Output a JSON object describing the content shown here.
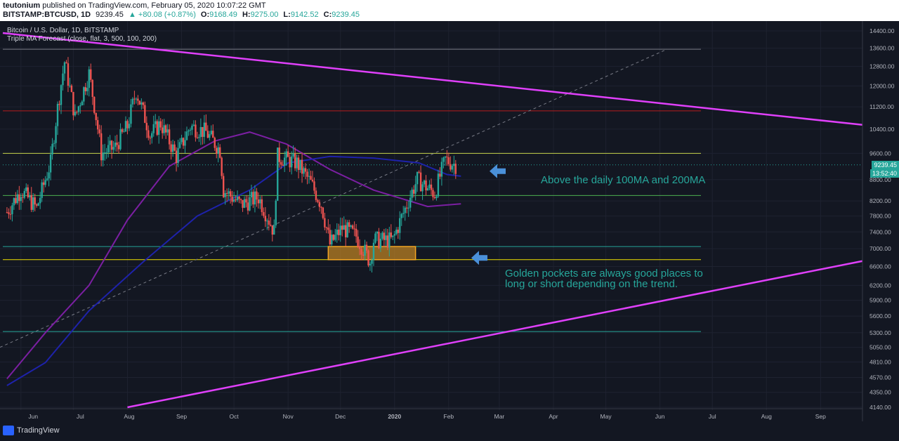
{
  "header": {
    "author": "teutonium",
    "published": "published on TradingView.com, February 05, 2020 10:07:22 GMT",
    "symbol": "BITSTAMP:BTCUSD, 1D",
    "last": "9239.45",
    "change": "▲ +80.08 (+0.87%)",
    "o_label": "O:",
    "o_val": "9168.49",
    "h_label": "H:",
    "h_val": "9275.00",
    "l_label": "L:",
    "l_val": "9142.52",
    "c_label": "C:",
    "c_val": "9239.45"
  },
  "legend": {
    "title": "Bitcoin / U.S. Dollar, 1D, BITSTAMP",
    "indicator": "Triple MA Forecast (close, flat, 3, 500, 100, 200)"
  },
  "annotations": {
    "ma_note": "Above the daily 100MA and 200MA",
    "gp_note_1": "Golden pockets are always good places to",
    "gp_note_2": "long or short depending on the trend."
  },
  "price_tags": {
    "last_price": "9239.45",
    "countdown": "13:52:40"
  },
  "footer": {
    "brand": "TradingView"
  },
  "colors": {
    "background": "#131722",
    "up": "#26a69a",
    "down": "#ef5350",
    "ma100": "#1e22aa",
    "ma200": "#7b1fa2",
    "trendline": "#e040fb",
    "golden_pocket": "#f5a623",
    "annotation": "#26a69a",
    "arrow": "#4a90d9"
  },
  "chart_data": {
    "type": "candlestick",
    "symbol": "BITSTAMP:BTCUSD",
    "interval": "1D",
    "x_ticks": [
      "Jun",
      "Jul",
      "Aug",
      "Sep",
      "Oct",
      "Nov",
      "Dec",
      "2020",
      "Feb",
      "Mar",
      "Apr",
      "May",
      "Jun",
      "Jul",
      "Aug",
      "Sep"
    ],
    "y_ticks": [
      "14400.00",
      "13600.00",
      "12800.00",
      "12000.00",
      "11200.00",
      "10400.00",
      "9600.00",
      "8800.00",
      "8200.00",
      "7800.00",
      "7400.00",
      "7000.00",
      "6600.00",
      "6200.00",
      "5900.00",
      "5600.00",
      "5300.00",
      "5050.00",
      "4810.00",
      "4570.00",
      "4350.00",
      "4140.00"
    ],
    "y_scale": "log",
    "ylim": [
      4140,
      14400
    ],
    "price_path": [
      [
        "2019-05-24",
        7900
      ],
      [
        "2019-06-01",
        8500
      ],
      [
        "2019-06-10",
        8000
      ],
      [
        "2019-06-18",
        9300
      ],
      [
        "2019-06-26",
        13000
      ],
      [
        "2019-07-02",
        10800
      ],
      [
        "2019-07-10",
        12500
      ],
      [
        "2019-07-17",
        9600
      ],
      [
        "2019-07-25",
        9800
      ],
      [
        "2019-08-01",
        10500
      ],
      [
        "2019-08-06",
        11800
      ],
      [
        "2019-08-14",
        10200
      ],
      [
        "2019-08-20",
        10600
      ],
      [
        "2019-08-29",
        9500
      ],
      [
        "2019-09-06",
        10500
      ],
      [
        "2019-09-15",
        10300
      ],
      [
        "2019-09-23",
        9700
      ],
      [
        "2019-09-25",
        8500
      ],
      [
        "2019-10-05",
        8100
      ],
      [
        "2019-10-15",
        8300
      ],
      [
        "2019-10-24",
        7400
      ],
      [
        "2019-10-26",
        9500
      ],
      [
        "2019-11-06",
        9300
      ],
      [
        "2019-11-14",
        8700
      ],
      [
        "2019-11-20",
        8100
      ],
      [
        "2019-11-25",
        7100
      ],
      [
        "2019-12-02",
        7500
      ],
      [
        "2019-12-10",
        7300
      ],
      [
        "2019-12-18",
        6700
      ],
      [
        "2019-12-20",
        7200
      ],
      [
        "2019-12-31",
        7200
      ],
      [
        "2020-01-08",
        8100
      ],
      [
        "2020-01-14",
        8800
      ],
      [
        "2020-01-24",
        8400
      ],
      [
        "2020-01-30",
        9400
      ],
      [
        "2020-02-05",
        9239.45
      ]
    ],
    "ma100": [
      [
        "2019-05-24",
        4450
      ],
      [
        "2019-06-15",
        4800
      ],
      [
        "2019-07-10",
        5700
      ],
      [
        "2019-08-10",
        6700
      ],
      [
        "2019-09-10",
        7800
      ],
      [
        "2019-10-10",
        8500
      ],
      [
        "2019-11-01",
        9300
      ],
      [
        "2019-11-25",
        9500
      ],
      [
        "2019-12-20",
        9450
      ],
      [
        "2020-01-15",
        9300
      ],
      [
        "2020-01-31",
        8950
      ],
      [
        "2020-02-08",
        8900
      ]
    ],
    "ma200": [
      [
        "2019-05-24",
        4550
      ],
      [
        "2019-06-15",
        5300
      ],
      [
        "2019-07-10",
        6200
      ],
      [
        "2019-08-01",
        7700
      ],
      [
        "2019-08-25",
        9200
      ],
      [
        "2019-09-20",
        10000
      ],
      [
        "2019-10-10",
        10300
      ],
      [
        "2019-10-31",
        9900
      ],
      [
        "2019-11-25",
        9100
      ],
      [
        "2019-12-20",
        8500
      ],
      [
        "2020-01-20",
        8050
      ],
      [
        "2020-02-08",
        8120
      ]
    ],
    "golden_pocket": {
      "from": "2019-11-24",
      "to": "2020-01-13",
      "top": 7050,
      "bottom": 6750
    },
    "last_price": 9239.45
  }
}
